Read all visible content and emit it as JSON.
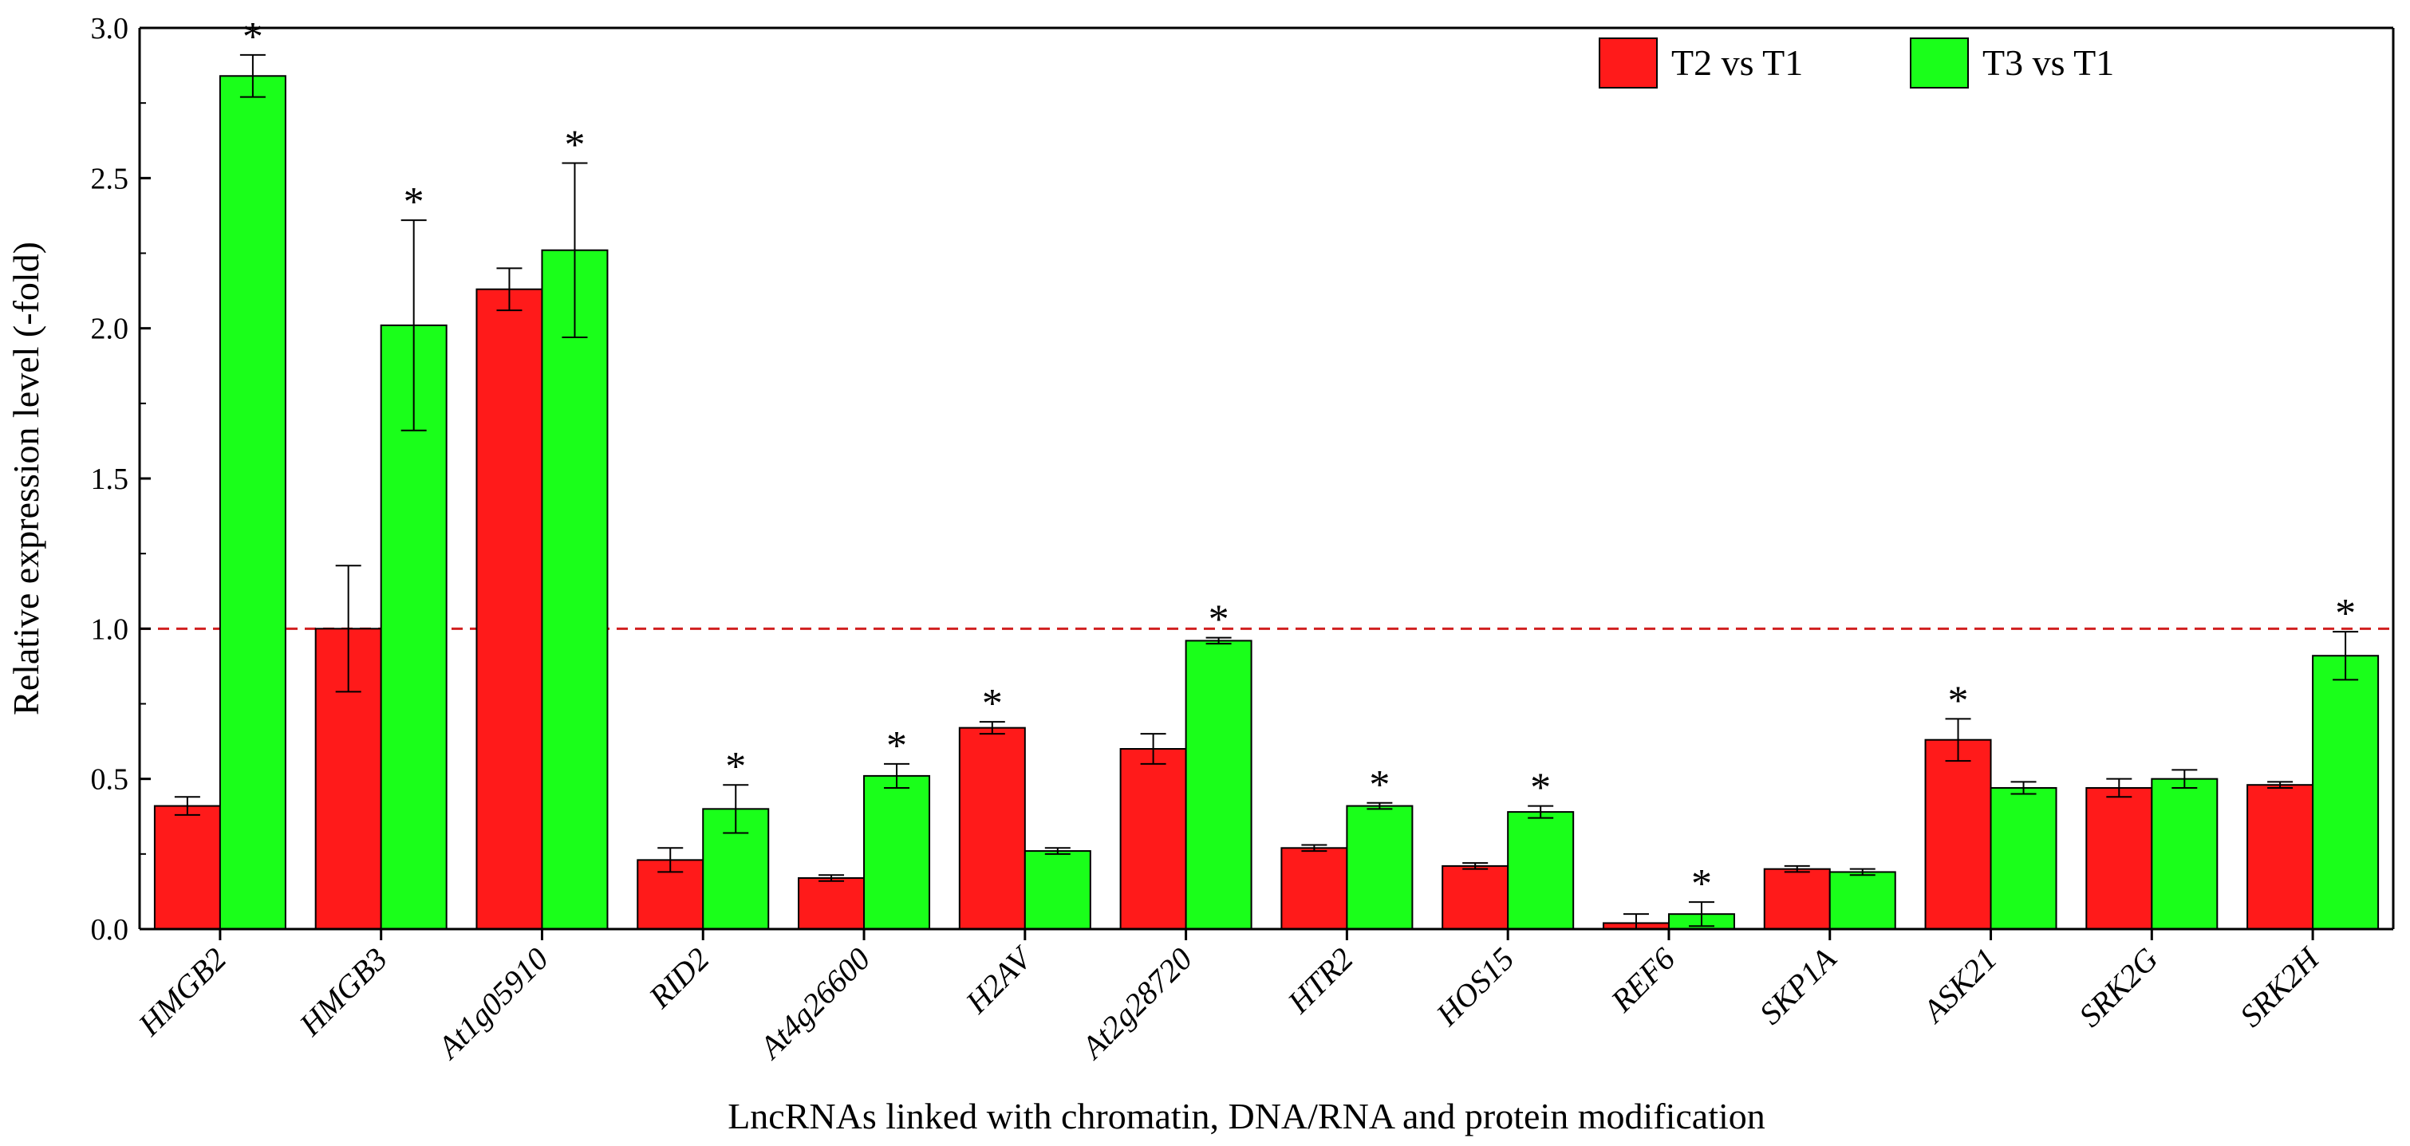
{
  "chart_data": {
    "type": "bar",
    "xlabel": "LncRNAs linked with chromatin, DNA/RNA and protein modification",
    "ylabel": "Relative expression level (-fold)",
    "ylim": [
      0,
      3.0
    ],
    "yticks": [
      "0.0",
      "0.5",
      "1.0",
      "1.5",
      "2.0",
      "2.5",
      "3.0"
    ],
    "ytick_values": [
      0,
      0.5,
      1.0,
      1.5,
      2.0,
      2.5,
      3.0
    ],
    "reference_line": 1.0,
    "legend_position": "top-right",
    "significance_symbol": "*",
    "categories": [
      "HMGB2",
      "HMGB3",
      "At1g05910",
      "RID2",
      "At4g26600",
      "H2AV",
      "At2g28720",
      "HTR2",
      "HOS15",
      "REF6",
      "SKP1A",
      "ASK21",
      "SRK2G",
      "SRK2H"
    ],
    "series": [
      {
        "name": "T2 vs T1",
        "color": "#ff1a1a",
        "values": [
          0.41,
          1.0,
          2.13,
          0.23,
          0.17,
          0.67,
          0.6,
          0.27,
          0.21,
          0.02,
          0.2,
          0.63,
          0.47,
          0.48
        ],
        "errors": [
          0.03,
          0.21,
          0.07,
          0.04,
          0.01,
          0.02,
          0.05,
          0.01,
          0.01,
          0.03,
          0.01,
          0.07,
          0.03,
          0.01
        ],
        "significant": [
          false,
          false,
          false,
          false,
          false,
          true,
          false,
          false,
          false,
          false,
          false,
          true,
          false,
          false
        ]
      },
      {
        "name": "T3 vs T1",
        "color": "#1aff1a",
        "values": [
          2.84,
          2.01,
          2.26,
          0.4,
          0.51,
          0.26,
          0.96,
          0.41,
          0.39,
          0.05,
          0.19,
          0.47,
          0.5,
          0.91
        ],
        "errors": [
          0.07,
          0.35,
          0.29,
          0.08,
          0.04,
          0.01,
          0.01,
          0.01,
          0.02,
          0.04,
          0.01,
          0.02,
          0.03,
          0.08
        ],
        "significant": [
          true,
          true,
          true,
          true,
          true,
          false,
          true,
          true,
          true,
          true,
          false,
          false,
          false,
          true
        ]
      }
    ]
  }
}
